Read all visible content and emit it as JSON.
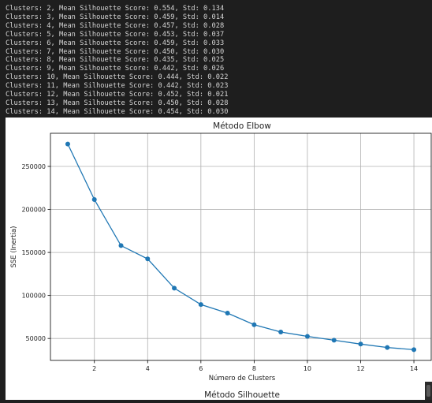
{
  "console": {
    "lines": [
      "Clusters: 2, Mean Silhouette Score: 0.554, Std: 0.134",
      "Clusters: 3, Mean Silhouette Score: 0.459, Std: 0.014",
      "Clusters: 4, Mean Silhouette Score: 0.457, Std: 0.028",
      "Clusters: 5, Mean Silhouette Score: 0.453, Std: 0.037",
      "Clusters: 6, Mean Silhouette Score: 0.459, Std: 0.033",
      "Clusters: 7, Mean Silhouette Score: 0.450, Std: 0.030",
      "Clusters: 8, Mean Silhouette Score: 0.435, Std: 0.025",
      "Clusters: 9, Mean Silhouette Score: 0.442, Std: 0.026",
      "Clusters: 10, Mean Silhouette Score: 0.444, Std: 0.022",
      "Clusters: 11, Mean Silhouette Score: 0.442, Std: 0.023",
      "Clusters: 12, Mean Silhouette Score: 0.452, Std: 0.021",
      "Clusters: 13, Mean Silhouette Score: 0.450, Std: 0.028",
      "Clusters: 14, Mean Silhouette Score: 0.454, Std: 0.030"
    ]
  },
  "figure": {
    "next_title": "Método Silhouette"
  },
  "chart_data": {
    "type": "line",
    "title": "Método Elbow",
    "xlabel": "Número de Clusters",
    "ylabel": "SSE (Inertia)",
    "x": [
      1,
      2,
      3,
      4,
      5,
      6,
      7,
      8,
      9,
      10,
      11,
      12,
      13,
      14
    ],
    "y": [
      276000,
      211500,
      158000,
      142500,
      108500,
      89500,
      79500,
      66000,
      57500,
      52500,
      48000,
      43500,
      39500,
      37000
    ],
    "xlim": [
      0.35,
      14.65
    ],
    "ylim": [
      24500,
      288500
    ],
    "xticks": [
      "2",
      "4",
      "6",
      "8",
      "10",
      "12",
      "14"
    ],
    "yticks": [
      "50000",
      "100000",
      "150000",
      "200000",
      "250000"
    ],
    "grid": true,
    "marker": "circle",
    "color": "#1f77b4"
  }
}
